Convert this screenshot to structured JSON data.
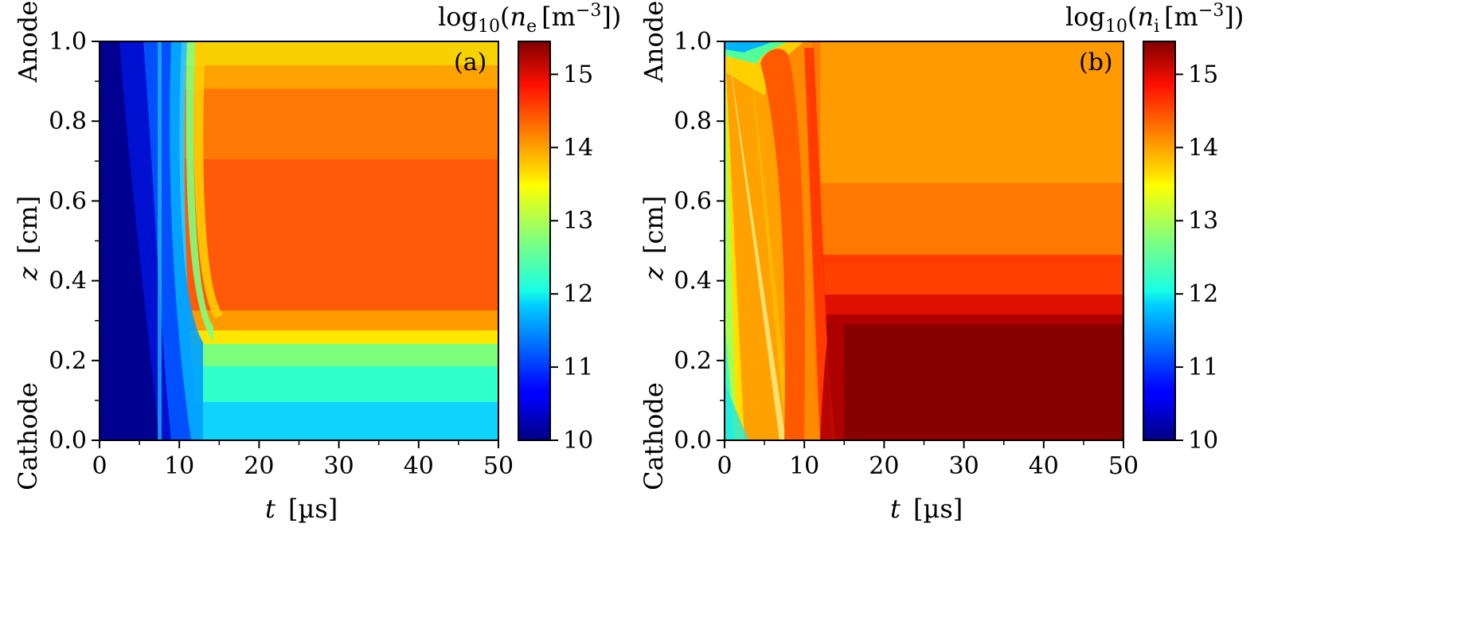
{
  "chart_data": [
    {
      "type": "heatmap",
      "panel_label": "(a)",
      "quantity": "log10(n_e [m^-3])",
      "xlabel": {
        "var": "t",
        "unit": "[µs]"
      },
      "ylabel": {
        "var": "z",
        "unit": "[cm]"
      },
      "xlim": [
        0,
        50
      ],
      "ylim": [
        0.0,
        1.0
      ],
      "x_ticks": [
        "0",
        "10",
        "20",
        "30",
        "40",
        "50"
      ],
      "y_ticks": [
        "0.0",
        "0.2",
        "0.4",
        "0.6",
        "0.8",
        "1.0"
      ],
      "y_end_labels": {
        "bottom": "Cathode",
        "top": "Anode"
      },
      "colorbar": {
        "title": {
          "base": "log",
          "sub": "10",
          "var": "n",
          "var_sub": "e",
          "unit": "[m",
          "exp": "−3",
          "close": "])"
        },
        "range": [
          10,
          15.45
        ],
        "ticks": [
          "10",
          "11",
          "12",
          "13",
          "14",
          "15"
        ],
        "colormap": "jet"
      },
      "field_description": "Low density (~10.2) for t<10 µs; bulk plasma ~14.6 for t>15 µs above z=0.25 cm; sheath region below z=0.23 cm ~11.9-12.6",
      "regions": [
        {
          "t_range": [
            0,
            8
          ],
          "z_range": [
            0,
            1
          ],
          "value": 10.2
        },
        {
          "t_range": [
            15,
            50
          ],
          "z_range": [
            0.28,
            0.95
          ],
          "value": 14.6
        },
        {
          "t_range": [
            15,
            50
          ],
          "z_range": [
            0.95,
            1.0
          ],
          "value": 13.9
        },
        {
          "t_range": [
            15,
            50
          ],
          "z_range": [
            0.0,
            0.23
          ],
          "value": 12.2
        }
      ]
    },
    {
      "type": "heatmap",
      "panel_label": "(b)",
      "quantity": "log10(n_i [m^-3])",
      "xlabel": {
        "var": "t",
        "unit": "[µs]"
      },
      "ylabel": {
        "var": "z",
        "unit": "[cm]"
      },
      "xlim": [
        0,
        50
      ],
      "ylim": [
        0.0,
        1.0
      ],
      "x_ticks": [
        "0",
        "10",
        "20",
        "30",
        "40",
        "50"
      ],
      "y_ticks": [
        "0.0",
        "0.2",
        "0.4",
        "0.6",
        "0.8",
        "1.0"
      ],
      "y_end_labels": {
        "bottom": "Cathode",
        "top": "Anode"
      },
      "colorbar": {
        "title": {
          "base": "log",
          "sub": "10",
          "var": "n",
          "var_sub": "i",
          "unit": "[m",
          "exp": "−3",
          "close": "])"
        },
        "range": [
          10,
          15.45
        ],
        "ticks": [
          "10",
          "11",
          "12",
          "13",
          "14",
          "15"
        ],
        "colormap": "jet"
      },
      "field_description": "Ion front from anode to cathode over 0-7 µs; bulk ~14.2-14.6 in upper region; dense region ~15.4 below z=0.3 cm for t>13 µs",
      "regions": [
        {
          "t_range": [
            13,
            50
          ],
          "z_range": [
            0.0,
            0.3
          ],
          "value": 15.4
        },
        {
          "t_range": [
            13,
            50
          ],
          "z_range": [
            0.3,
            0.6
          ],
          "value": 14.8
        },
        {
          "t_range": [
            13,
            50
          ],
          "z_range": [
            0.6,
            1.0
          ],
          "value": 14.2
        }
      ]
    }
  ]
}
